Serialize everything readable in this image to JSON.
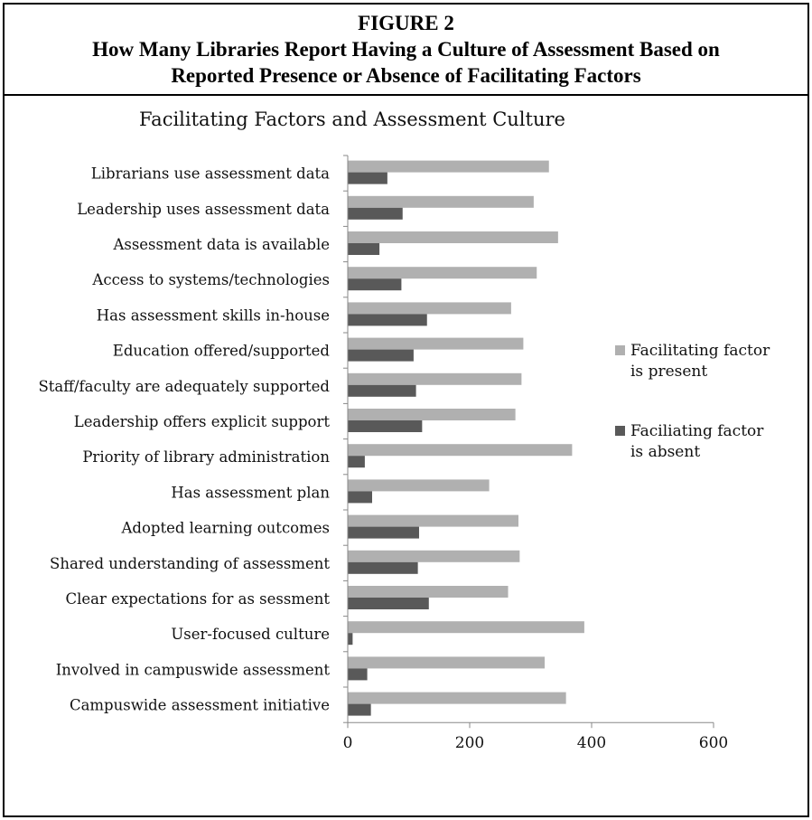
{
  "figure": {
    "number": "FIGURE 2",
    "title_line1": "How Many Libraries Report Having a Culture of Assessment Based on",
    "title_line2": "Reported Presence or Absence of Facilitating Factors"
  },
  "chart_data": {
    "type": "bar",
    "orientation": "horizontal",
    "title": "Facilitating Factors and Assessment Culture",
    "categories": [
      "Librarians use assessment data",
      "Leadership uses assessment data",
      "Assessment data is available",
      "Access to systems/technologies",
      "Has assessment skills in-house",
      "Education offered/supported",
      "Staff/faculty are adequately supported",
      "Leadership offers explicit support",
      "Priority of library administration",
      "Has assessment plan",
      "Adopted learning outcomes",
      "Shared understanding of assessment",
      "Clear expectations for as sessment",
      "User-focused culture",
      "Involved in campuswide assessment",
      "Campuswide assessment initiative"
    ],
    "series": [
      {
        "name": "Facilitating factor is present",
        "legend_lines": [
          "Facilitating factor",
          "is present"
        ],
        "color": "#b0b0b0",
        "values": [
          330,
          305,
          345,
          310,
          268,
          288,
          285,
          275,
          368,
          232,
          280,
          282,
          263,
          388,
          323,
          358
        ]
      },
      {
        "name": "Faciliating factor is absent",
        "legend_lines": [
          "Faciliating factor",
          "is absent"
        ],
        "color": "#595959",
        "values": [
          65,
          90,
          52,
          88,
          130,
          108,
          112,
          122,
          28,
          40,
          117,
          115,
          133,
          8,
          32,
          38
        ]
      }
    ],
    "xlim": [
      0,
      600
    ],
    "xticks": [
      0,
      200,
      400,
      600
    ],
    "xlabel": "",
    "ylabel": "",
    "grid": false,
    "legend_position": "right"
  }
}
